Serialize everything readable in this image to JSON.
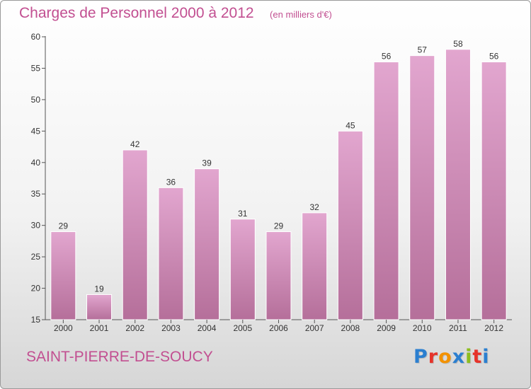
{
  "header": {
    "title": "Charges de Personnel 2000 à 2012",
    "unit": "(en milliers d'€)"
  },
  "footer": {
    "commune": "SAINT-PIERRE-DE-SOUCY",
    "logo_text": "Proxiti",
    "logo_colors": [
      "#2b7fd0",
      "#e6332a",
      "#f39200",
      "#2b7fd0",
      "#8dbd1e",
      "#e6332a",
      "#2b7fd0"
    ]
  },
  "colors": {
    "bar_top": "#e2a6cf",
    "bar_bottom": "#b56f9a",
    "accent": "#c24f91"
  },
  "chart_data": {
    "type": "bar",
    "categories": [
      "2000",
      "2001",
      "2002",
      "2003",
      "2004",
      "2005",
      "2006",
      "2007",
      "2008",
      "2009",
      "2010",
      "2011",
      "2012"
    ],
    "values": [
      29,
      19,
      42,
      36,
      39,
      31,
      29,
      32,
      45,
      56,
      57,
      58,
      56
    ],
    "ylim": [
      15,
      60
    ],
    "yticks": [
      15,
      20,
      25,
      30,
      35,
      40,
      45,
      50,
      55,
      60
    ],
    "grid": false
  }
}
